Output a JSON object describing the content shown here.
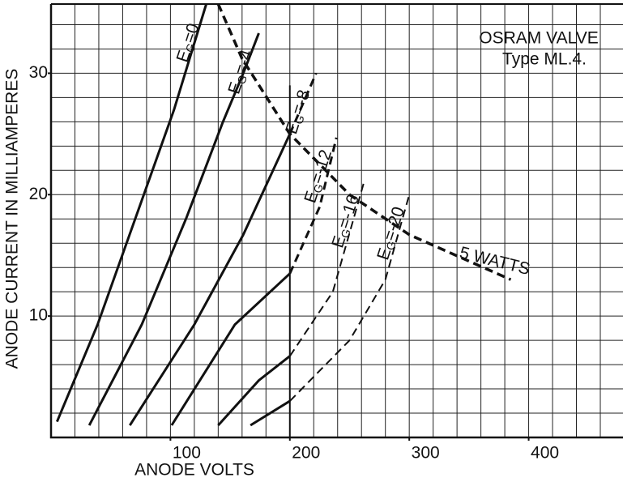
{
  "chart_data": {
    "type": "line",
    "title": "OSRAM VALVE",
    "subtitle": "Type ML.4.",
    "x_label": "ANODE VOLTS",
    "y_label": "ANODE CURRENT IN MILLIAMPERES",
    "xlim": [
      0,
      479
    ],
    "ylim": [
      0,
      35.7
    ],
    "xticks": [
      100,
      200,
      300,
      400
    ],
    "yticks": [
      10,
      20,
      30
    ],
    "x_minor_ticks": [
      20,
      40,
      60,
      80,
      100,
      120,
      140,
      160,
      180,
      200,
      220,
      240,
      260,
      280,
      300,
      320,
      340,
      360,
      380,
      400,
      420,
      440,
      460
    ],
    "y_minor_ticks": [
      2,
      4,
      6,
      8,
      10,
      12,
      14,
      16,
      18,
      20,
      22,
      24,
      26,
      28,
      30,
      32,
      34
    ],
    "grid": true,
    "color": "#111111",
    "dashed_from_x": 200,
    "limit_line": {
      "x": 200,
      "top": 29
    },
    "series": [
      {
        "name": "EG=0",
        "x": [
          5,
          39,
          73,
          103,
          130
        ],
        "values": [
          1.3,
          9.3,
          18.7,
          27,
          35.7
        ]
      },
      {
        "name": "EG=-4",
        "x": [
          32,
          76,
          113,
          144,
          161,
          174
        ],
        "values": [
          1,
          9.3,
          18,
          26,
          30,
          33.3
        ]
      },
      {
        "name": "EG=-8",
        "x": [
          66,
          120,
          161,
          200,
          222
        ],
        "values": [
          1,
          9.3,
          16.7,
          25,
          30
        ]
      },
      {
        "name": "EG=-12",
        "x": [
          101,
          154,
          200,
          225,
          239
        ],
        "values": [
          1,
          9.3,
          13.5,
          19,
          24.7
        ]
      },
      {
        "name": "EG=-16",
        "x": [
          140,
          174,
          200,
          236,
          262
        ],
        "values": [
          1,
          4.7,
          6.7,
          12,
          21
        ]
      },
      {
        "name": "EG=-20",
        "x": [
          167,
          200,
          250,
          280,
          300
        ],
        "values": [
          1,
          3,
          8,
          13,
          20
        ]
      }
    ],
    "power_curve": {
      "name": "5 WATTS",
      "x": [
        140,
        160,
        200,
        250,
        300,
        385
      ],
      "values": [
        35.7,
        31.2,
        25,
        20,
        16.7,
        13
      ]
    }
  }
}
